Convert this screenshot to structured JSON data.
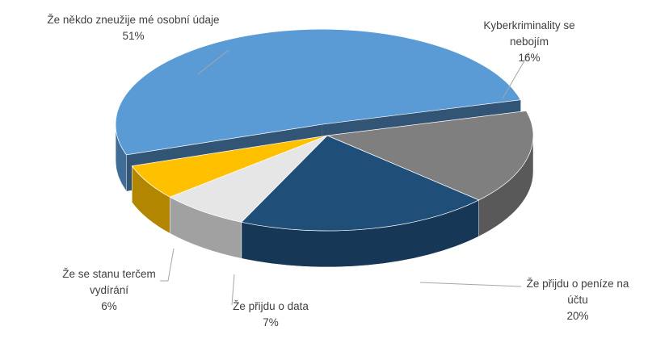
{
  "chart_data": {
    "type": "pie3d",
    "categories": [
      "Že někdo zneužije mé osobní údaje",
      "Kyberkriminality se nebojím",
      "Že přijdu o peníze na účtu",
      "Že přijdu o data",
      "Že se stanu terčem vydírání"
    ],
    "values": [
      51,
      16,
      20,
      7,
      6
    ],
    "value_labels": [
      "51%",
      "16%",
      "20%",
      "7%",
      "6%"
    ],
    "colors": [
      "#5b9bd5",
      "#7f7f7f",
      "#1f4e79",
      "#e7e6e6",
      "#ffc000"
    ]
  }
}
